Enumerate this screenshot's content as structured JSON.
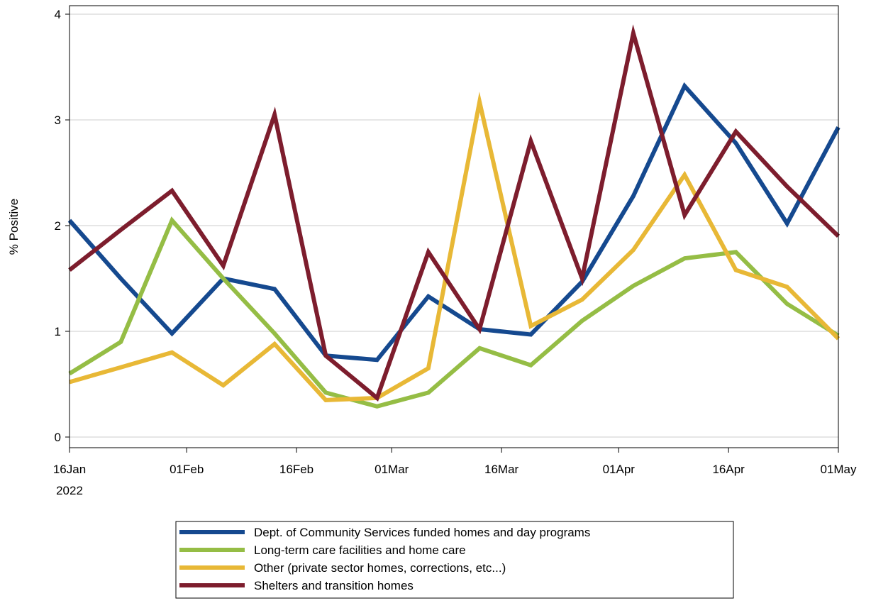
{
  "chart_data": {
    "type": "line",
    "ylabel": "% Positive",
    "xlabel": "",
    "ylim": [
      0,
      4
    ],
    "xlim": [
      "2022-01-16",
      "2022-05-01"
    ],
    "grid": "horizontal",
    "legend_position": "bottom",
    "yticks": [
      0,
      1,
      2,
      3,
      4
    ],
    "xticks": [
      {
        "date": "2022-01-16",
        "label": "16Jan",
        "sublabel": "2022"
      },
      {
        "date": "2022-02-01",
        "label": "01Feb"
      },
      {
        "date": "2022-02-16",
        "label": "16Feb"
      },
      {
        "date": "2022-03-01",
        "label": "01Mar"
      },
      {
        "date": "2022-03-16",
        "label": "16Mar"
      },
      {
        "date": "2022-04-01",
        "label": "01Apr"
      },
      {
        "date": "2022-04-16",
        "label": "16Apr"
      },
      {
        "date": "2022-05-01",
        "label": "01May"
      }
    ],
    "x": [
      "2022-01-16",
      "2022-01-23",
      "2022-01-30",
      "2022-02-06",
      "2022-02-13",
      "2022-02-20",
      "2022-02-27",
      "2022-03-06",
      "2022-03-13",
      "2022-03-20",
      "2022-03-27",
      "2022-04-03",
      "2022-04-10",
      "2022-04-17",
      "2022-04-24",
      "2022-05-01"
    ],
    "series": [
      {
        "name": "Dept. of Community Services funded homes and day programs",
        "color": "#15498f",
        "values": [
          2.05,
          1.5,
          0.98,
          1.5,
          1.4,
          0.77,
          0.73,
          1.33,
          1.02,
          0.97,
          1.47,
          2.28,
          3.32,
          2.78,
          2.02,
          2.93
        ]
      },
      {
        "name": "Long-term care facilities and home care",
        "color": "#95bd45",
        "values": [
          0.6,
          0.9,
          2.05,
          1.5,
          0.98,
          0.42,
          0.29,
          0.42,
          0.84,
          0.68,
          1.1,
          1.43,
          1.69,
          1.75,
          1.26,
          0.96
        ]
      },
      {
        "name": "Other (private sector homes, corrections, etc...)",
        "color": "#e8b836",
        "values": [
          0.52,
          0.66,
          0.8,
          0.49,
          0.88,
          0.35,
          0.37,
          0.65,
          3.17,
          1.05,
          1.3,
          1.77,
          2.48,
          1.58,
          1.42,
          0.93
        ]
      },
      {
        "name": "Shelters and transition homes",
        "color": "#7d1d2d",
        "values": [
          1.58,
          1.96,
          2.33,
          1.62,
          3.05,
          0.77,
          0.37,
          1.75,
          1.02,
          2.8,
          1.5,
          3.82,
          2.1,
          2.89,
          2.37,
          1.9
        ]
      }
    ]
  }
}
